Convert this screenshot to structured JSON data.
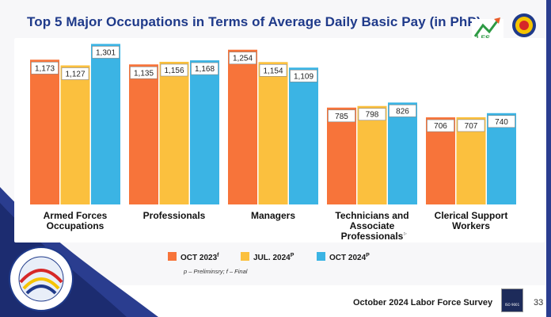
{
  "title": "Top 5 Major Occupations in Terms of Average Daily Basic Pay (in PhP)",
  "footer": "October 2024 Labor Force Survey",
  "page_number": "33",
  "legend_note": "p – Preliminsry; f – Final",
  "logo_text": "BAGONG PILIPINAS",
  "psa_logo_text": "PHILIPPINE STATISTICS AUTHORITY",
  "iso_text": "ISO 9001",
  "colors": {
    "oct2023": "#f7743a",
    "jul2024": "#fbc03e",
    "oct2024": "#3bb4e4",
    "title": "#1f3a8a",
    "band": "#2a3d8f"
  },
  "chart_data": {
    "type": "bar",
    "title": "Top 5 Major Occupations in Terms of Average Daily Basic Pay (in PhP)",
    "categories": [
      [
        "Armed Forces",
        "Occupations"
      ],
      [
        "Professionals"
      ],
      [
        "Managers"
      ],
      [
        "Technicians and",
        "Associate",
        "Professionals"
      ],
      [
        "Clerical Support",
        "Workers"
      ]
    ],
    "series": [
      {
        "name": "OCT 2023",
        "superscript": "f",
        "color": "#f7743a",
        "values": [
          1173,
          1135,
          1254,
          785,
          706
        ]
      },
      {
        "name": "JUL. 2024",
        "superscript": "p",
        "color": "#fbc03e",
        "values": [
          1127,
          1156,
          1154,
          798,
          707
        ]
      },
      {
        "name": "OCT 2024",
        "superscript": "p",
        "color": "#3bb4e4",
        "values": [
          1301,
          1168,
          1109,
          826,
          740
        ]
      }
    ],
    "value_labels": [
      [
        "1,173",
        "1,135",
        "1,254",
        "785",
        "706"
      ],
      [
        "1,127",
        "1,156",
        "1,154",
        "798",
        "707"
      ],
      [
        "1,301",
        "1,168",
        "1,109",
        "826",
        "740"
      ]
    ],
    "ylim": [
      0,
      1400
    ],
    "grid": false,
    "legend_position": "bottom"
  }
}
